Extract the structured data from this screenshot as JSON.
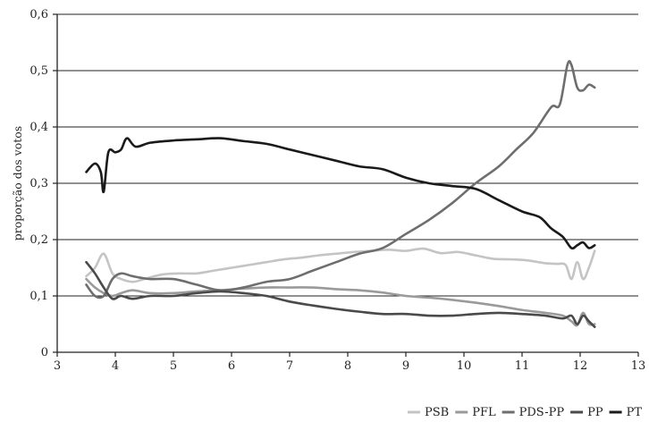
{
  "chart_data": {
    "type": "line",
    "title": "",
    "xlabel": "",
    "ylabel": "proporção dos votos",
    "xlim": [
      3,
      13
    ],
    "ylim": [
      0,
      0.6
    ],
    "x_ticks": [
      3,
      4,
      5,
      6,
      7,
      8,
      9,
      10,
      11,
      12,
      13
    ],
    "x_tick_labels": [
      "3",
      "4",
      "5",
      "6",
      "7",
      "8",
      "9",
      "10",
      "11",
      "12",
      "13"
    ],
    "y_ticks": [
      0,
      0.1,
      0.2,
      0.3,
      0.4,
      0.5,
      0.6
    ],
    "y_tick_labels": [
      "0",
      "0,1",
      "0,2",
      "0,3",
      "0,4",
      "0,5",
      "0,6"
    ],
    "grid": "horizontal",
    "legend_position": "bottom-right",
    "series": [
      {
        "name": "PSB",
        "color": "#c4c4c4",
        "x": [
          3.5,
          3.65,
          3.8,
          3.95,
          4.1,
          4.3,
          4.5,
          4.8,
          5.1,
          5.4,
          5.7,
          6.0,
          6.3,
          6.6,
          6.9,
          7.2,
          7.5,
          7.8,
          8.1,
          8.4,
          8.7,
          9.0,
          9.3,
          9.6,
          9.9,
          10.2,
          10.5,
          10.8,
          11.1,
          11.4,
          11.6,
          11.75,
          11.85,
          11.95,
          12.05,
          12.15,
          12.25
        ],
        "y": [
          0.135,
          0.15,
          0.175,
          0.14,
          0.13,
          0.125,
          0.13,
          0.138,
          0.14,
          0.14,
          0.145,
          0.15,
          0.155,
          0.16,
          0.165,
          0.168,
          0.172,
          0.175,
          0.178,
          0.18,
          0.182,
          0.18,
          0.184,
          0.176,
          0.178,
          0.172,
          0.166,
          0.165,
          0.163,
          0.158,
          0.157,
          0.155,
          0.13,
          0.16,
          0.13,
          0.15,
          0.18
        ]
      },
      {
        "name": "PFL",
        "color": "#9a9a9a",
        "x": [
          3.5,
          3.65,
          3.8,
          3.95,
          4.1,
          4.3,
          4.6,
          5.0,
          5.4,
          5.8,
          6.2,
          6.6,
          7.0,
          7.4,
          7.8,
          8.2,
          8.6,
          9.0,
          9.4,
          9.8,
          10.2,
          10.6,
          11.0,
          11.4,
          11.7,
          11.85,
          11.95,
          12.05,
          12.15,
          12.25
        ],
        "y": [
          0.13,
          0.115,
          0.105,
          0.1,
          0.105,
          0.11,
          0.105,
          0.105,
          0.108,
          0.11,
          0.113,
          0.115,
          0.115,
          0.115,
          0.112,
          0.11,
          0.106,
          0.1,
          0.097,
          0.093,
          0.088,
          0.082,
          0.075,
          0.07,
          0.065,
          0.055,
          0.048,
          0.07,
          0.05,
          0.05
        ]
      },
      {
        "name": "PDS-PP",
        "color": "#6e6e6e",
        "x": [
          3.5,
          3.65,
          3.8,
          3.95,
          4.1,
          4.3,
          4.6,
          5.0,
          5.4,
          5.8,
          6.2,
          6.6,
          7.0,
          7.4,
          7.8,
          8.2,
          8.6,
          9.0,
          9.4,
          9.8,
          10.2,
          10.6,
          10.9,
          11.2,
          11.5,
          11.65,
          11.78,
          11.85,
          11.95,
          12.05,
          12.15,
          12.25
        ],
        "y": [
          0.12,
          0.1,
          0.1,
          0.13,
          0.14,
          0.135,
          0.13,
          0.13,
          0.12,
          0.11,
          0.115,
          0.125,
          0.13,
          0.145,
          0.16,
          0.175,
          0.185,
          0.21,
          0.235,
          0.265,
          0.3,
          0.33,
          0.36,
          0.39,
          0.435,
          0.44,
          0.51,
          0.51,
          0.47,
          0.465,
          0.475,
          0.47
        ]
      },
      {
        "name": "PP",
        "color": "#4a4a4a",
        "x": [
          3.5,
          3.65,
          3.8,
          3.95,
          4.1,
          4.3,
          4.6,
          5.0,
          5.4,
          5.8,
          6.2,
          6.6,
          7.0,
          7.4,
          7.8,
          8.2,
          8.6,
          9.0,
          9.4,
          9.8,
          10.2,
          10.6,
          11.0,
          11.4,
          11.7,
          11.85,
          11.95,
          12.05,
          12.15,
          12.25
        ],
        "y": [
          0.16,
          0.14,
          0.115,
          0.095,
          0.1,
          0.095,
          0.1,
          0.1,
          0.105,
          0.108,
          0.105,
          0.1,
          0.09,
          0.083,
          0.077,
          0.072,
          0.068,
          0.068,
          0.065,
          0.065,
          0.068,
          0.07,
          0.068,
          0.065,
          0.06,
          0.065,
          0.05,
          0.065,
          0.055,
          0.045
        ]
      },
      {
        "name": "PT",
        "color": "#1a1a1a",
        "x": [
          3.5,
          3.65,
          3.75,
          3.8,
          3.88,
          4.0,
          4.1,
          4.2,
          4.35,
          4.6,
          5.0,
          5.4,
          5.8,
          6.2,
          6.6,
          7.0,
          7.4,
          7.8,
          8.2,
          8.6,
          9.0,
          9.4,
          9.8,
          10.2,
          10.6,
          11.0,
          11.3,
          11.5,
          11.7,
          11.85,
          11.95,
          12.05,
          12.15,
          12.25
        ],
        "y": [
          0.32,
          0.335,
          0.32,
          0.285,
          0.355,
          0.355,
          0.36,
          0.38,
          0.365,
          0.372,
          0.376,
          0.378,
          0.38,
          0.375,
          0.37,
          0.36,
          0.35,
          0.34,
          0.33,
          0.325,
          0.31,
          0.3,
          0.295,
          0.29,
          0.27,
          0.25,
          0.24,
          0.22,
          0.205,
          0.185,
          0.19,
          0.195,
          0.185,
          0.19
        ]
      }
    ]
  }
}
